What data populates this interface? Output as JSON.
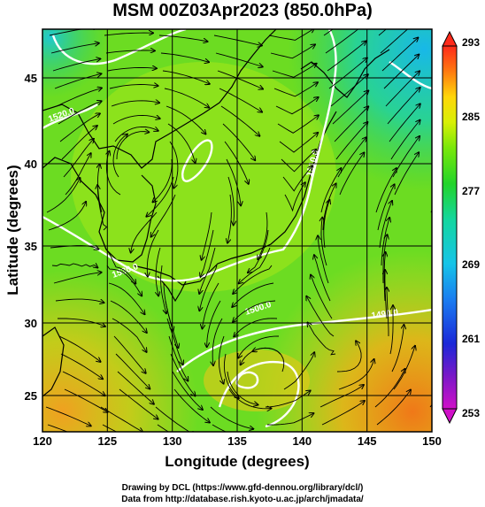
{
  "title": "MSM 00Z03Apr2023 (850.0hPa)",
  "axes": {
    "xlabel": "Longitude (degrees)",
    "ylabel": "Latitude  (degrees)",
    "xlim": [
      120,
      150
    ],
    "ylim": [
      22.5,
      47.6
    ],
    "xticks": [
      "120",
      "125",
      "130",
      "135",
      "140",
      "145",
      "150"
    ],
    "yticks": [
      "25",
      "30",
      "35",
      "40",
      "45"
    ]
  },
  "colorbar": {
    "ticks": [
      "293",
      "285",
      "277",
      "269",
      "261",
      "253"
    ],
    "colors": [
      "#ff2a1a",
      "#ff7a10",
      "#ffd60a",
      "#d8f006",
      "#7ae80a",
      "#22d42a",
      "#14d6a0",
      "#16c4e8",
      "#1a7cf0",
      "#1a28d8",
      "#7a18c8",
      "#d010c8"
    ]
  },
  "contours": {
    "labels": [
      "1520.0",
      "1530.0",
      "1500.0",
      "1490.0",
      "1510.0"
    ]
  },
  "credits": {
    "line1": "Drawing by DCL (https://www.gfd-dennou.org/library/dcl/)",
    "line2": "Data from http://database.rish.kyoto-u.ac.jp/arch/jmadata/"
  }
}
